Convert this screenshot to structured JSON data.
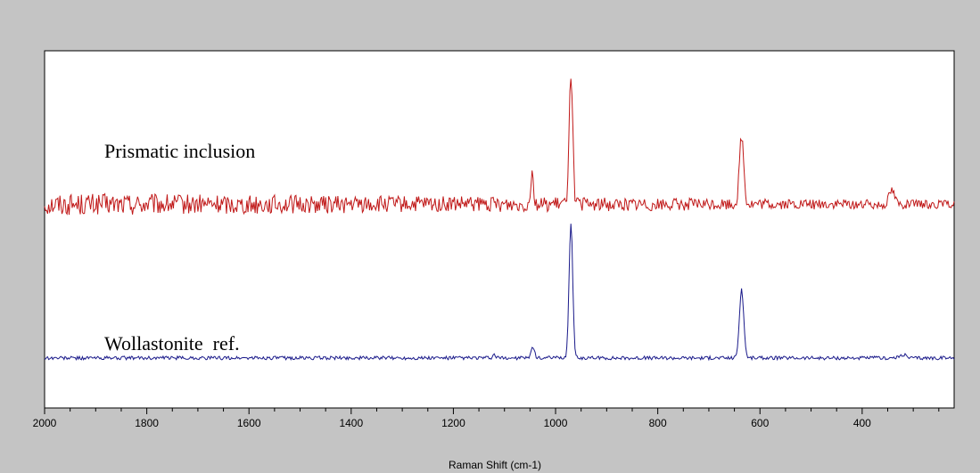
{
  "chart_data": {
    "type": "line",
    "title": "",
    "xlabel": "Raman Shift (cm-1)",
    "ylabel": "",
    "xlim": [
      2000,
      220
    ],
    "x_reversed": true,
    "grid": false,
    "x_ticks": [
      2000,
      1800,
      1600,
      1400,
      1200,
      1000,
      800,
      600,
      400
    ],
    "x_tick_labels": [
      "2000",
      "1800",
      "1600",
      "1400",
      "1200",
      "1000",
      "800",
      "600",
      "400"
    ],
    "series": [
      {
        "name": "Prismatic inclusion",
        "color": "#c01818",
        "baseline": 0.57,
        "noise": 0.02,
        "peaks": [
          {
            "x": 1046,
            "height": 0.09,
            "width": 4
          },
          {
            "x": 970,
            "height": 0.37,
            "width": 5
          },
          {
            "x": 636,
            "height": 0.19,
            "width": 6
          },
          {
            "x": 342,
            "height": 0.04,
            "width": 8
          }
        ]
      },
      {
        "name": "Wollastonite  ref.",
        "color": "#1a1a8a",
        "baseline": 0.14,
        "noise": 0.005,
        "peaks": [
          {
            "x": 1120,
            "height": 0.01,
            "width": 3
          },
          {
            "x": 1045,
            "height": 0.03,
            "width": 5
          },
          {
            "x": 970,
            "height": 0.38,
            "width": 5
          },
          {
            "x": 636,
            "height": 0.19,
            "width": 6
          },
          {
            "x": 320,
            "height": 0.01,
            "width": 8
          }
        ]
      }
    ]
  }
}
